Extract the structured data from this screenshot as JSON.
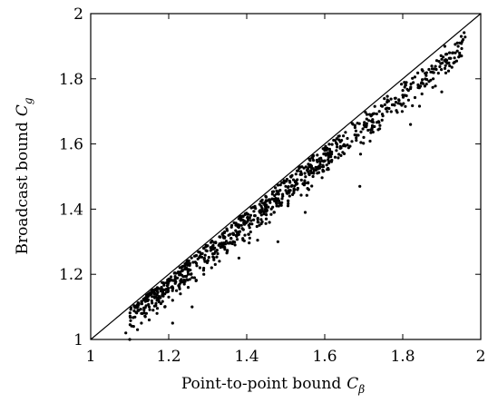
{
  "chart_data": {
    "type": "scatter",
    "xlabel": "Point-to-point bound",
    "xlabel_symbol": "C",
    "xlabel_subscript": "β",
    "ylabel": "Broadcast bound",
    "ylabel_symbol": "C",
    "ylabel_subscript": "g",
    "xlim": [
      1,
      2
    ],
    "ylim": [
      1,
      2
    ],
    "xticks": [
      "1",
      "1.2",
      "1.4",
      "1.6",
      "1.8",
      "2"
    ],
    "yticks": [
      "1",
      "1.2",
      "1.4",
      "1.6",
      "1.8",
      "2"
    ],
    "grid": false,
    "legend": "none",
    "reference_line": {
      "from": [
        1,
        1
      ],
      "to": [
        2,
        2
      ]
    },
    "marker_color": "#000000",
    "point_count": 900,
    "points": [
      [
        1.09,
        1.02
      ],
      [
        1.1,
        1.0
      ],
      [
        1.11,
        1.04
      ],
      [
        1.12,
        1.03
      ],
      [
        1.13,
        1.05
      ],
      [
        1.13,
        1.08
      ],
      [
        1.14,
        1.07
      ],
      [
        1.15,
        1.06
      ],
      [
        1.15,
        1.1
      ],
      [
        1.16,
        1.09
      ],
      [
        1.17,
        1.08
      ],
      [
        1.17,
        1.12
      ],
      [
        1.18,
        1.11
      ],
      [
        1.19,
        1.1
      ],
      [
        1.19,
        1.14
      ],
      [
        1.2,
        1.13
      ],
      [
        1.21,
        1.12
      ],
      [
        1.21,
        1.16
      ],
      [
        1.22,
        1.15
      ],
      [
        1.23,
        1.14
      ],
      [
        1.23,
        1.18
      ],
      [
        1.24,
        1.17
      ],
      [
        1.25,
        1.16
      ],
      [
        1.25,
        1.2
      ],
      [
        1.26,
        1.19
      ],
      [
        1.27,
        1.18
      ],
      [
        1.28,
        1.22
      ],
      [
        1.29,
        1.2
      ],
      [
        1.3,
        1.24
      ],
      [
        1.31,
        1.22
      ],
      [
        1.32,
        1.27
      ],
      [
        1.33,
        1.24
      ],
      [
        1.34,
        1.29
      ],
      [
        1.35,
        1.27
      ],
      [
        1.36,
        1.31
      ],
      [
        1.37,
        1.29
      ],
      [
        1.38,
        1.33
      ],
      [
        1.39,
        1.31
      ],
      [
        1.4,
        1.36
      ],
      [
        1.41,
        1.33
      ],
      [
        1.42,
        1.38
      ],
      [
        1.43,
        1.36
      ],
      [
        1.44,
        1.4
      ],
      [
        1.45,
        1.37
      ],
      [
        1.46,
        1.42
      ],
      [
        1.47,
        1.39
      ],
      [
        1.48,
        1.45
      ],
      [
        1.49,
        1.42
      ],
      [
        1.5,
        1.47
      ],
      [
        1.51,
        1.44
      ],
      [
        1.52,
        1.49
      ],
      [
        1.53,
        1.46
      ],
      [
        1.54,
        1.51
      ],
      [
        1.55,
        1.48
      ],
      [
        1.56,
        1.53
      ],
      [
        1.57,
        1.5
      ],
      [
        1.58,
        1.55
      ],
      [
        1.6,
        1.58
      ],
      [
        1.61,
        1.56
      ],
      [
        1.63,
        1.58
      ],
      [
        1.65,
        1.57
      ],
      [
        1.68,
        1.64
      ],
      [
        1.7,
        1.62
      ],
      [
        1.72,
        1.67
      ],
      [
        1.74,
        1.7
      ],
      [
        1.76,
        1.71
      ],
      [
        1.78,
        1.74
      ],
      [
        1.8,
        1.75
      ],
      [
        1.82,
        1.77
      ],
      [
        1.84,
        1.78
      ],
      [
        1.86,
        1.81
      ],
      [
        1.88,
        1.83
      ],
      [
        1.9,
        1.86
      ],
      [
        1.92,
        1.88
      ],
      [
        1.94,
        1.91
      ],
      [
        1.95,
        1.93
      ],
      [
        1.69,
        1.47
      ],
      [
        1.55,
        1.39
      ],
      [
        1.38,
        1.25
      ],
      [
        1.26,
        1.1
      ],
      [
        1.21,
        1.05
      ],
      [
        1.48,
        1.3
      ],
      [
        1.82,
        1.66
      ],
      [
        1.9,
        1.76
      ]
    ]
  }
}
